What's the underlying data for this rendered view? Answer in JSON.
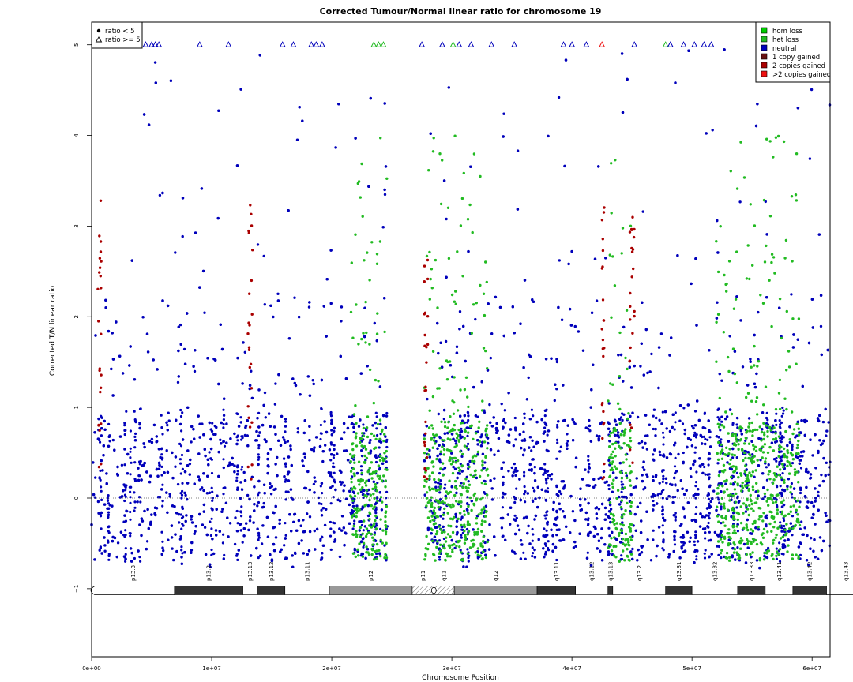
{
  "chart_data": {
    "type": "scatter",
    "title": "Corrected Tumour/Normal linear ratio for chromosome  19",
    "xlabel": "Chromosome Position",
    "ylabel": "Corrected T/N linear ratio",
    "xlim": [
      0,
      61500000
    ],
    "ylim": [
      -1.75,
      5.25
    ],
    "x_ticks": [
      {
        "value": 0,
        "label": "0e+00"
      },
      {
        "value": 10000000,
        "label": "1e+07"
      },
      {
        "value": 20000000,
        "label": "2e+07"
      },
      {
        "value": 30000000,
        "label": "3e+07"
      },
      {
        "value": 40000000,
        "label": "4e+07"
      },
      {
        "value": 50000000,
        "label": "5e+07"
      },
      {
        "value": 60000000,
        "label": "6e+07"
      }
    ],
    "y_ticks": [
      {
        "value": -1,
        "label": "−1"
      },
      {
        "value": 0,
        "label": "0"
      },
      {
        "value": 1,
        "label": "1"
      },
      {
        "value": 2,
        "label": "2"
      },
      {
        "value": 3,
        "label": "3"
      },
      {
        "value": 4,
        "label": "4"
      },
      {
        "value": 5,
        "label": "5"
      }
    ],
    "reference_line": 0,
    "cap_value": 5,
    "chromosome_length": 61500000,
    "centromere_gap": [
      24600000,
      27700000
    ],
    "grid": false,
    "shape_legend": {
      "placement": "top-left",
      "entries": [
        {
          "label": "ratio < 5",
          "shape": "filled-circle"
        },
        {
          "label": "ratio >= 5",
          "shape": "open-triangle"
        }
      ]
    },
    "color_legend": {
      "placement": "top-right",
      "entries": [
        {
          "label": "hom loss",
          "color": "#00cc00"
        },
        {
          "label": "het loss",
          "color": "#22bb22"
        },
        {
          "label": "neutral",
          "color": "#0000bb"
        },
        {
          "label": "1 copy gained",
          "color": "#661111"
        },
        {
          "label": "2 copies gained",
          "color": "#aa0000"
        },
        {
          "label": ">2 copies gained",
          "color": "#ee1111"
        }
      ]
    },
    "series": [
      {
        "name": "neutral",
        "color": "#0000bb",
        "x_range": [
          0,
          61500000
        ],
        "typical_range": [
          -0.7,
          0.9
        ],
        "max_value": 5
      },
      {
        "name": "het loss",
        "color": "#22bb22",
        "x_clusters": [
          [
            21500000,
            24600000
          ],
          [
            27700000,
            33000000
          ],
          [
            43000000,
            45000000
          ],
          [
            52000000,
            59000000
          ]
        ],
        "typical_range": [
          -0.7,
          0.8
        ]
      },
      {
        "name": "2 copies gained",
        "color": "#aa0000",
        "x_clusters": [
          [
            500000,
            800000
          ],
          [
            13000000,
            13400000
          ],
          [
            27700000,
            28000000
          ],
          [
            42500000,
            42700000
          ],
          [
            44800000,
            45200000
          ]
        ],
        "typical_range": [
          0.2,
          3.3
        ]
      }
    ],
    "capped_points": [
      {
        "x": 400000,
        "series": "neutral"
      },
      {
        "x": 1000000,
        "series": "neutral"
      },
      {
        "x": 1600000,
        "series": "neutral"
      },
      {
        "x": 2600000,
        "series": "neutral"
      },
      {
        "x": 2800000,
        "series": "neutral"
      },
      {
        "x": 3200000,
        "series": "neutral"
      },
      {
        "x": 3600000,
        "series": "neutral"
      },
      {
        "x": 4500000,
        "series": "neutral"
      },
      {
        "x": 5000000,
        "series": "neutral"
      },
      {
        "x": 5300000,
        "series": "neutral"
      },
      {
        "x": 5600000,
        "series": "neutral"
      },
      {
        "x": 9000000,
        "series": "neutral"
      },
      {
        "x": 11400000,
        "series": "neutral"
      },
      {
        "x": 15900000,
        "series": "neutral"
      },
      {
        "x": 16800000,
        "series": "neutral"
      },
      {
        "x": 18300000,
        "series": "neutral"
      },
      {
        "x": 18700000,
        "series": "neutral"
      },
      {
        "x": 19200000,
        "series": "neutral"
      },
      {
        "x": 23500000,
        "series": "het loss"
      },
      {
        "x": 23900000,
        "series": "het loss"
      },
      {
        "x": 24300000,
        "series": "het loss"
      },
      {
        "x": 27500000,
        "series": "neutral"
      },
      {
        "x": 29200000,
        "series": "neutral"
      },
      {
        "x": 30100000,
        "series": "het loss"
      },
      {
        "x": 30600000,
        "series": "neutral"
      },
      {
        "x": 31600000,
        "series": "neutral"
      },
      {
        "x": 33300000,
        "series": "neutral"
      },
      {
        "x": 35200000,
        "series": "neutral"
      },
      {
        "x": 39300000,
        "series": "neutral"
      },
      {
        "x": 40000000,
        "series": "neutral"
      },
      {
        "x": 41200000,
        "series": "neutral"
      },
      {
        "x": 42500000,
        "series": ">2 copies gained"
      },
      {
        "x": 45200000,
        "series": "neutral"
      },
      {
        "x": 47800000,
        "series": "het loss"
      },
      {
        "x": 48200000,
        "series": "neutral"
      },
      {
        "x": 49300000,
        "series": "neutral"
      },
      {
        "x": 50200000,
        "series": "neutral"
      },
      {
        "x": 51000000,
        "series": "neutral"
      },
      {
        "x": 51600000,
        "series": "neutral"
      },
      {
        "x": 55600000,
        "series": "neutral"
      }
    ],
    "ideogram": {
      "bands": [
        {
          "name": "p13.3",
          "start": 0,
          "end": 6900000,
          "stain": "gneg"
        },
        {
          "name": "p13.2",
          "start": 6900000,
          "end": 12600000,
          "stain": "gpos75"
        },
        {
          "name": "p13.13",
          "start": 12600000,
          "end": 13800000,
          "stain": "gneg"
        },
        {
          "name": "p13.12",
          "start": 13800000,
          "end": 16100000,
          "stain": "gpos75"
        },
        {
          "name": "p13.11",
          "start": 16100000,
          "end": 19800000,
          "stain": "gneg"
        },
        {
          "name": "p12",
          "start": 19800000,
          "end": 26700000,
          "stain": "gvar"
        },
        {
          "name": "p11",
          "start": 26700000,
          "end": 28500000,
          "stain": "acen"
        },
        {
          "name": "q11",
          "start": 28500000,
          "end": 30200000,
          "stain": "acen"
        },
        {
          "name": "q12",
          "start": 30200000,
          "end": 37100000,
          "stain": "gvar"
        },
        {
          "name": "q13.11",
          "start": 37100000,
          "end": 40300000,
          "stain": "gpos75"
        },
        {
          "name": "q13.12",
          "start": 40300000,
          "end": 43000000,
          "stain": "gneg"
        },
        {
          "name": "q13.13",
          "start": 43000000,
          "end": 43400000,
          "stain": "gpos75"
        },
        {
          "name": "q13.2",
          "start": 43400000,
          "end": 47800000,
          "stain": "gneg"
        },
        {
          "name": "q13.31",
          "start": 47800000,
          "end": 50000000,
          "stain": "gpos75"
        },
        {
          "name": "q13.32",
          "start": 50000000,
          "end": 53800000,
          "stain": "gneg"
        },
        {
          "name": "q13.33",
          "start": 53800000,
          "end": 56100000,
          "stain": "gpos75"
        },
        {
          "name": "q13.41",
          "start": 56100000,
          "end": 58400000,
          "stain": "gneg"
        },
        {
          "name": "q13.42",
          "start": 58400000,
          "end": 61200000,
          "stain": "gpos75"
        },
        {
          "name": "q13.43",
          "start": 61200000,
          "end": 64400000,
          "stain": "gneg"
        }
      ]
    }
  }
}
